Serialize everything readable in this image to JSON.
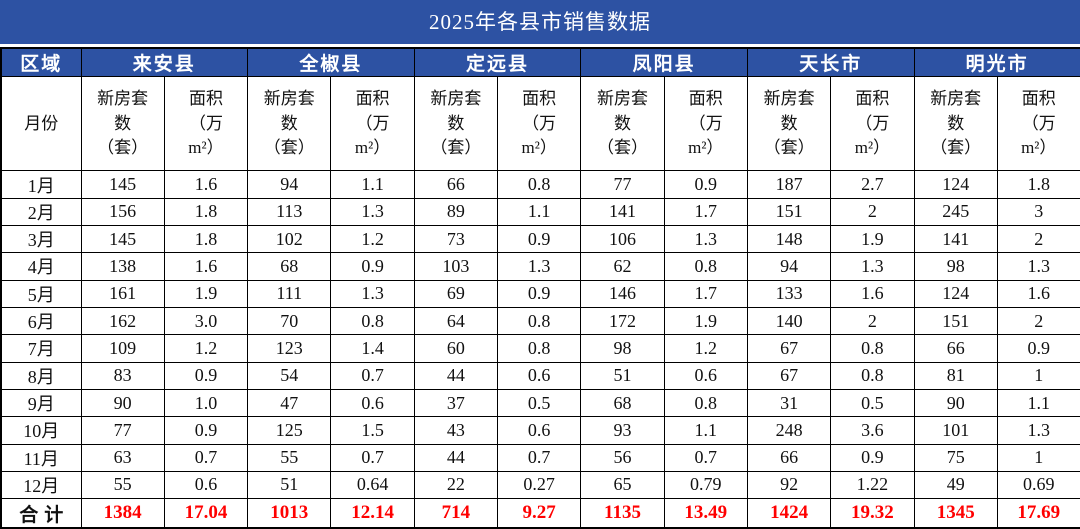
{
  "title": "2025年各县市销售数据",
  "colors": {
    "banner_blue": "#2d52a3",
    "header_text": "#ffffff",
    "body_text": "#111111",
    "total_value_red": "#ff0000",
    "border": "#000000"
  },
  "table": {
    "region_label": "区域",
    "month_label": "月份",
    "regions": [
      "来安县",
      "全椒县",
      "定远县",
      "凤阳县",
      "天长市",
      "明光市"
    ],
    "subheaders": {
      "units": "新房套\n数\n（套）",
      "area": "面积\n（万\nm²）"
    },
    "rows": [
      {
        "month": "1月",
        "values": [
          "145",
          "1.6",
          "94",
          "1.1",
          "66",
          "0.8",
          "77",
          "0.9",
          "187",
          "2.7",
          "124",
          "1.8"
        ]
      },
      {
        "month": "2月",
        "values": [
          "156",
          "1.8",
          "113",
          "1.3",
          "89",
          "1.1",
          "141",
          "1.7",
          "151",
          "2",
          "245",
          "3"
        ]
      },
      {
        "month": "3月",
        "values": [
          "145",
          "1.8",
          "102",
          "1.2",
          "73",
          "0.9",
          "106",
          "1.3",
          "148",
          "1.9",
          "141",
          "2"
        ]
      },
      {
        "month": "4月",
        "values": [
          "138",
          "1.6",
          "68",
          "0.9",
          "103",
          "1.3",
          "62",
          "0.8",
          "94",
          "1.3",
          "98",
          "1.3"
        ]
      },
      {
        "month": "5月",
        "values": [
          "161",
          "1.9",
          "111",
          "1.3",
          "69",
          "0.9",
          "146",
          "1.7",
          "133",
          "1.6",
          "124",
          "1.6"
        ]
      },
      {
        "month": "6月",
        "values": [
          "162",
          "3.0",
          "70",
          "0.8",
          "64",
          "0.8",
          "172",
          "1.9",
          "140",
          "2",
          "151",
          "2"
        ]
      },
      {
        "month": "7月",
        "values": [
          "109",
          "1.2",
          "123",
          "1.4",
          "60",
          "0.8",
          "98",
          "1.2",
          "67",
          "0.8",
          "66",
          "0.9"
        ]
      },
      {
        "month": "8月",
        "values": [
          "83",
          "0.9",
          "54",
          "0.7",
          "44",
          "0.6",
          "51",
          "0.6",
          "67",
          "0.8",
          "81",
          "1"
        ]
      },
      {
        "month": "9月",
        "values": [
          "90",
          "1.0",
          "47",
          "0.6",
          "37",
          "0.5",
          "68",
          "0.8",
          "31",
          "0.5",
          "90",
          "1.1"
        ]
      },
      {
        "month": "10月",
        "values": [
          "77",
          "0.9",
          "125",
          "1.5",
          "43",
          "0.6",
          "93",
          "1.1",
          "248",
          "3.6",
          "101",
          "1.3"
        ]
      },
      {
        "month": "11月",
        "values": [
          "63",
          "0.7",
          "55",
          "0.7",
          "44",
          "0.7",
          "56",
          "0.7",
          "66",
          "0.9",
          "75",
          "1"
        ]
      },
      {
        "month": "12月",
        "values": [
          "55",
          "0.6",
          "51",
          "0.64",
          "22",
          "0.27",
          "65",
          "0.79",
          "92",
          "1.22",
          "49",
          "0.69"
        ]
      }
    ],
    "total": {
      "label": "合计",
      "values": [
        "1384",
        "17.04",
        "1013",
        "12.14",
        "714",
        "9.27",
        "1135",
        "13.49",
        "1424",
        "19.32",
        "1345",
        "17.69"
      ]
    }
  },
  "chart_data": {
    "type": "table",
    "title": "2025年各县市销售数据",
    "row_header": "月份",
    "months": [
      "1月",
      "2月",
      "3月",
      "4月",
      "5月",
      "6月",
      "7月",
      "8月",
      "9月",
      "10月",
      "11月",
      "12月"
    ],
    "column_units": [
      "新房套数（套）",
      "面积（万m²）"
    ],
    "series": [
      {
        "name": "来安县",
        "units": [
          145,
          156,
          145,
          138,
          161,
          162,
          109,
          83,
          90,
          77,
          63,
          55
        ],
        "area": [
          1.6,
          1.8,
          1.8,
          1.6,
          1.9,
          3.0,
          1.2,
          0.9,
          1.0,
          0.9,
          0.7,
          0.6
        ],
        "total_units": 1384,
        "total_area": 17.04
      },
      {
        "name": "全椒县",
        "units": [
          94,
          113,
          102,
          68,
          111,
          70,
          123,
          54,
          47,
          125,
          55,
          51
        ],
        "area": [
          1.1,
          1.3,
          1.2,
          0.9,
          1.3,
          0.8,
          1.4,
          0.7,
          0.6,
          1.5,
          0.7,
          0.64
        ],
        "total_units": 1013,
        "total_area": 12.14
      },
      {
        "name": "定远县",
        "units": [
          66,
          89,
          73,
          103,
          69,
          64,
          60,
          44,
          37,
          43,
          44,
          22
        ],
        "area": [
          0.8,
          1.1,
          0.9,
          1.3,
          0.9,
          0.8,
          0.8,
          0.6,
          0.5,
          0.6,
          0.7,
          0.27
        ],
        "total_units": 714,
        "total_area": 9.27
      },
      {
        "name": "凤阳县",
        "units": [
          77,
          141,
          106,
          62,
          146,
          172,
          98,
          51,
          68,
          93,
          56,
          65
        ],
        "area": [
          0.9,
          1.7,
          1.3,
          0.8,
          1.7,
          1.9,
          1.2,
          0.6,
          0.8,
          1.1,
          0.7,
          0.79
        ],
        "total_units": 1135,
        "total_area": 13.49
      },
      {
        "name": "天长市",
        "units": [
          187,
          151,
          148,
          94,
          133,
          140,
          67,
          67,
          31,
          248,
          66,
          92
        ],
        "area": [
          2.7,
          2,
          1.9,
          1.3,
          1.6,
          2,
          0.8,
          0.8,
          0.5,
          3.6,
          0.9,
          1.22
        ],
        "total_units": 1424,
        "total_area": 19.32
      },
      {
        "name": "明光市",
        "units": [
          124,
          245,
          141,
          98,
          124,
          151,
          66,
          81,
          90,
          101,
          75,
          49
        ],
        "area": [
          1.8,
          3,
          2,
          1.3,
          1.6,
          2,
          0.9,
          1,
          1.1,
          1.3,
          1,
          0.69
        ],
        "total_units": 1345,
        "total_area": 17.69
      }
    ],
    "total_row_label": "合计"
  }
}
